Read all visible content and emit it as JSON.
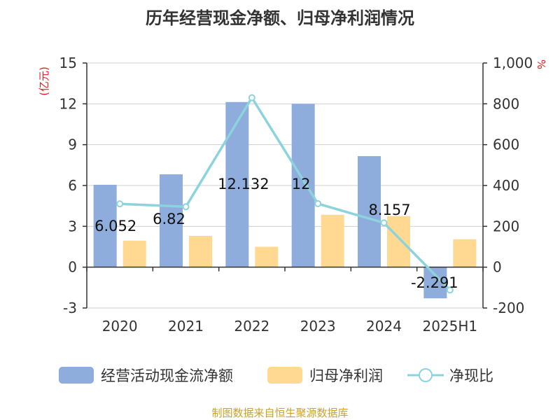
{
  "chart_data": {
    "type": "bar",
    "title": "历年经营现金净额、归母净利润情况",
    "categories": [
      "2020",
      "2021",
      "2022",
      "2023",
      "2024",
      "2025H1"
    ],
    "series": [
      {
        "name": "经营活动现金流净额",
        "kind": "bar",
        "axis": "left",
        "color": "#8eacdc",
        "values": [
          6.052,
          6.82,
          12.132,
          12,
          8.157,
          -2.291
        ],
        "labels": [
          "6.052",
          "6.82",
          "12.132",
          "12",
          "8.157",
          "-2.291"
        ]
      },
      {
        "name": "归母净利润",
        "kind": "bar",
        "axis": "left",
        "color": "#ffd991",
        "values": [
          1.95,
          2.3,
          1.5,
          3.85,
          3.75,
          2.05
        ]
      },
      {
        "name": "净现比",
        "kind": "line",
        "axis": "right",
        "color": "#8dd3dc",
        "values": [
          310,
          296,
          830,
          311,
          217,
          -112
        ]
      }
    ],
    "y_left": {
      "unit": "(亿元)",
      "min": -3,
      "max": 15,
      "ticks": [
        -3,
        0,
        3,
        6,
        9,
        12,
        15
      ],
      "tick_labels": [
        "-3",
        "0",
        "3",
        "6",
        "9",
        "12",
        "15"
      ]
    },
    "y_right": {
      "unit": "%",
      "min": -200,
      "max": 1000,
      "ticks": [
        -200,
        0,
        200,
        400,
        600,
        800,
        1000
      ],
      "tick_labels": [
        "-200",
        "0",
        "200",
        "400",
        "600",
        "800",
        "1,000"
      ]
    },
    "grid": true,
    "legend_position": "bottom",
    "source": "制图数据来自恒生聚源数据库"
  }
}
